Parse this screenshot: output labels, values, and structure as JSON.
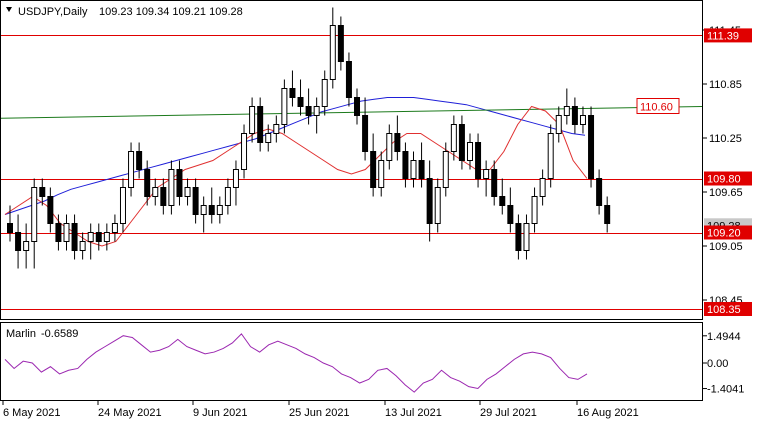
{
  "chart_header": {
    "symbol_period": "USDJPY,Daily",
    "ohlc": "109.23 109.34 109.21 109.28"
  },
  "indicator_header": {
    "name": "Marlin",
    "value": "-0.6589"
  },
  "colors": {
    "bull_body": "#ffffff",
    "bear_body": "#000000",
    "level_line": "#e00000",
    "ma_blue": "#1f1fd8",
    "ma_green": "#1c7a1c",
    "ma_red": "#e03030",
    "marlin": "#9b27b0",
    "tag_fill": "#e00000"
  },
  "price_scale": [
    "111.45",
    "110.85",
    "110.25",
    "109.65",
    "109.05",
    "108.45"
  ],
  "level_tags": [
    {
      "label": "111.39",
      "price": 111.39,
      "style": "filled"
    },
    {
      "label": "110.60",
      "price": 110.6,
      "style": "outline"
    },
    {
      "label": "109.80",
      "price": 109.8,
      "style": "filled"
    },
    {
      "label": "109.20",
      "price": 109.2,
      "style": "filled"
    },
    {
      "label": "108.35",
      "price": 108.35,
      "style": "filled"
    }
  ],
  "bid_label": "109.28",
  "indicator_scale": [
    "1.4944",
    "0.00",
    "-1.4041"
  ],
  "time_axis": [
    "6 May 2021",
    "24 May 2021",
    "9 Jun 2021",
    "25 Jun 2021",
    "13 Jul 2021",
    "29 Jul 2021",
    "16 Aug 2021"
  ],
  "chart_data": {
    "type": "candlestick",
    "price_range": [
      108.2,
      111.8
    ],
    "candles": [
      [
        109.3,
        109.5,
        109.1,
        109.2
      ],
      [
        109.2,
        109.4,
        108.8,
        109.0
      ],
      [
        109.0,
        109.3,
        108.8,
        109.1
      ],
      [
        109.1,
        109.8,
        108.8,
        109.7
      ],
      [
        109.7,
        109.8,
        109.5,
        109.6
      ],
      [
        109.6,
        109.7,
        109.2,
        109.3
      ],
      [
        109.3,
        109.4,
        109.0,
        109.1
      ],
      [
        109.1,
        109.4,
        109.0,
        109.3
      ],
      [
        109.3,
        109.4,
        108.9,
        109.0
      ],
      [
        109.0,
        109.2,
        108.9,
        109.1
      ],
      [
        109.1,
        109.3,
        108.9,
        109.2
      ],
      [
        109.2,
        109.3,
        109.0,
        109.1
      ],
      [
        109.1,
        109.3,
        109.0,
        109.2
      ],
      [
        109.2,
        109.4,
        109.1,
        109.3
      ],
      [
        109.3,
        109.8,
        109.2,
        109.7
      ],
      [
        109.7,
        110.2,
        109.6,
        110.1
      ],
      [
        110.1,
        110.2,
        109.8,
        109.9
      ],
      [
        109.9,
        110.0,
        109.5,
        109.6
      ],
      [
        109.6,
        109.8,
        109.5,
        109.7
      ],
      [
        109.7,
        109.8,
        109.4,
        109.5
      ],
      [
        109.5,
        110.0,
        109.4,
        109.9
      ],
      [
        109.9,
        110.0,
        109.5,
        109.6
      ],
      [
        109.6,
        109.8,
        109.5,
        109.7
      ],
      [
        109.7,
        109.8,
        109.3,
        109.4
      ],
      [
        109.4,
        109.6,
        109.2,
        109.5
      ],
      [
        109.5,
        109.7,
        109.3,
        109.4
      ],
      [
        109.4,
        109.6,
        109.3,
        109.5
      ],
      [
        109.5,
        109.8,
        109.4,
        109.7
      ],
      [
        109.7,
        110.0,
        109.5,
        109.9
      ],
      [
        109.9,
        110.4,
        109.8,
        110.3
      ],
      [
        110.3,
        110.7,
        110.2,
        110.6
      ],
      [
        110.6,
        110.7,
        110.1,
        110.2
      ],
      [
        110.2,
        110.4,
        110.1,
        110.3
      ],
      [
        110.3,
        110.5,
        110.2,
        110.4
      ],
      [
        110.4,
        110.9,
        110.3,
        110.8
      ],
      [
        110.8,
        111.0,
        110.6,
        110.7
      ],
      [
        110.7,
        110.9,
        110.5,
        110.6
      ],
      [
        110.6,
        110.8,
        110.4,
        110.5
      ],
      [
        110.5,
        110.7,
        110.3,
        110.6
      ],
      [
        110.6,
        111.0,
        110.5,
        110.9
      ],
      [
        110.9,
        111.7,
        110.8,
        111.5
      ],
      [
        111.5,
        111.6,
        111.0,
        111.1
      ],
      [
        111.1,
        111.2,
        110.6,
        110.7
      ],
      [
        110.7,
        110.8,
        110.4,
        110.5
      ],
      [
        110.5,
        110.7,
        110.0,
        110.1
      ],
      [
        110.1,
        110.3,
        109.6,
        109.7
      ],
      [
        109.7,
        110.1,
        109.6,
        110.0
      ],
      [
        110.0,
        110.4,
        109.9,
        110.3
      ],
      [
        110.3,
        110.5,
        110.0,
        110.1
      ],
      [
        110.1,
        110.2,
        109.7,
        109.8
      ],
      [
        109.8,
        110.1,
        109.7,
        110.0
      ],
      [
        110.0,
        110.2,
        109.7,
        109.8
      ],
      [
        109.8,
        110.0,
        109.1,
        109.3
      ],
      [
        109.3,
        109.8,
        109.2,
        109.7
      ],
      [
        109.7,
        110.2,
        109.6,
        110.1
      ],
      [
        110.1,
        110.5,
        110.0,
        110.4
      ],
      [
        110.4,
        110.5,
        109.9,
        110.0
      ],
      [
        110.0,
        110.3,
        109.9,
        110.2
      ],
      [
        110.2,
        110.3,
        109.7,
        109.8
      ],
      [
        109.8,
        110.0,
        109.6,
        109.9
      ],
      [
        109.9,
        110.0,
        109.5,
        109.6
      ],
      [
        109.6,
        109.8,
        109.4,
        109.5
      ],
      [
        109.5,
        109.7,
        109.2,
        109.3
      ],
      [
        109.3,
        109.4,
        108.9,
        109.0
      ],
      [
        109.0,
        109.4,
        108.9,
        109.3
      ],
      [
        109.3,
        109.7,
        109.2,
        109.6
      ],
      [
        109.6,
        109.9,
        109.5,
        109.8
      ],
      [
        109.8,
        110.4,
        109.7,
        110.3
      ],
      [
        110.3,
        110.6,
        110.2,
        110.5
      ],
      [
        110.5,
        110.8,
        110.4,
        110.6
      ],
      [
        110.6,
        110.7,
        110.3,
        110.4
      ],
      [
        110.4,
        110.6,
        110.3,
        110.5
      ],
      [
        110.5,
        110.6,
        109.7,
        109.8
      ],
      [
        109.8,
        109.9,
        109.4,
        109.5
      ],
      [
        109.5,
        109.6,
        109.2,
        109.3
      ]
    ],
    "series": [
      {
        "color": "ma_blue",
        "values": [
          109.4,
          109.45,
          109.5,
          109.55,
          109.62,
          109.68,
          109.72,
          109.76,
          109.8,
          109.84,
          109.88,
          109.92,
          109.96,
          110.0,
          110.04,
          110.08,
          110.12,
          110.16,
          110.2,
          110.24,
          110.3,
          110.36,
          110.42,
          110.48,
          110.54,
          110.58,
          110.62,
          110.66,
          110.68,
          110.7,
          110.7,
          110.7,
          110.68,
          110.66,
          110.64,
          110.62,
          110.58,
          110.54,
          110.5,
          110.46,
          110.42,
          110.38,
          110.34,
          110.3,
          110.28
        ]
      },
      {
        "color": "ma_green",
        "values": [
          110.47,
          110.6
        ]
      },
      {
        "color": "ma_red",
        "values": [
          109.4,
          109.5,
          109.6,
          109.5,
          109.3,
          109.2,
          109.1,
          109.05,
          109.1,
          109.3,
          109.5,
          109.7,
          109.8,
          109.9,
          109.95,
          110.0,
          110.1,
          110.2,
          110.3,
          110.35,
          110.3,
          110.2,
          110.1,
          110.0,
          109.9,
          109.85,
          109.9,
          110.05,
          110.2,
          110.3,
          110.3,
          110.2,
          110.1,
          110.0,
          109.9,
          109.9,
          110.1,
          110.4,
          110.6,
          110.55,
          110.4,
          110.0,
          109.8
        ]
      }
    ],
    "indicator_values": [
      0.2,
      -0.3,
      0.1,
      0.0,
      -0.5,
      -0.2,
      -0.6,
      -0.4,
      -0.3,
      0.2,
      0.6,
      0.9,
      1.2,
      1.5,
      1.4,
      1.0,
      0.6,
      0.7,
      0.9,
      1.3,
      0.9,
      0.7,
      0.5,
      0.6,
      0.8,
      1.1,
      1.6,
      0.9,
      0.6,
      1.0,
      1.2,
      1.0,
      0.8,
      0.5,
      0.3,
      0.0,
      -0.2,
      -0.6,
      -0.8,
      -1.1,
      -0.9,
      -0.4,
      -0.3,
      -0.7,
      -1.2,
      -1.6,
      -1.1,
      -0.9,
      -0.4,
      -0.8,
      -1.0,
      -1.3,
      -1.4,
      -0.9,
      -0.6,
      -0.2,
      0.2,
      0.5,
      0.6,
      0.5,
      0.3,
      -0.3,
      -0.8,
      -0.9,
      -0.6
    ]
  }
}
